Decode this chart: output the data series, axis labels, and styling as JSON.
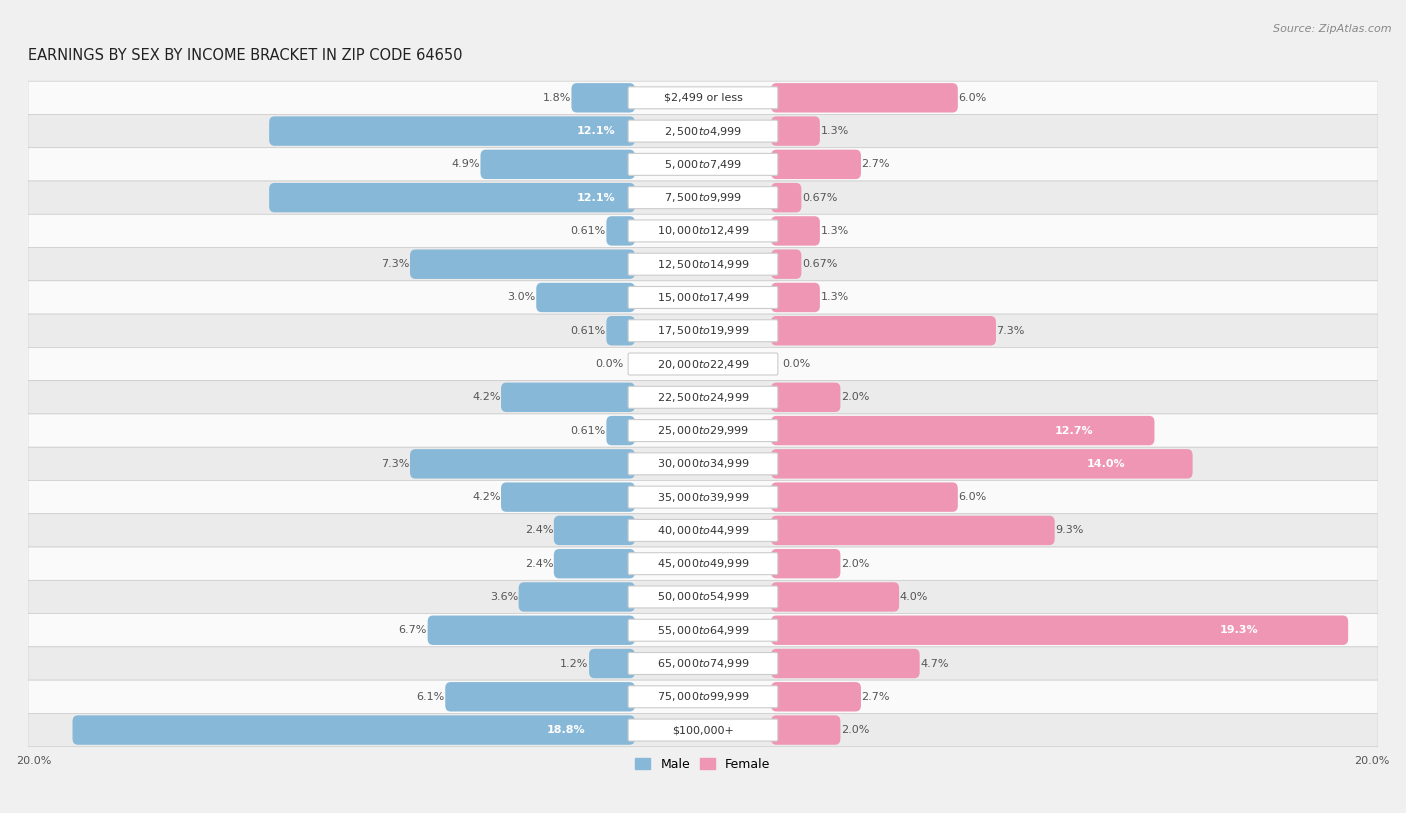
{
  "title": "EARNINGS BY SEX BY INCOME BRACKET IN ZIP CODE 64650",
  "source": "Source: ZipAtlas.com",
  "categories": [
    "$2,499 or less",
    "$2,500 to $4,999",
    "$5,000 to $7,499",
    "$7,500 to $9,999",
    "$10,000 to $12,499",
    "$12,500 to $14,999",
    "$15,000 to $17,499",
    "$17,500 to $19,999",
    "$20,000 to $22,499",
    "$22,500 to $24,999",
    "$25,000 to $29,999",
    "$30,000 to $34,999",
    "$35,000 to $39,999",
    "$40,000 to $44,999",
    "$45,000 to $49,999",
    "$50,000 to $54,999",
    "$55,000 to $64,999",
    "$65,000 to $74,999",
    "$75,000 to $99,999",
    "$100,000+"
  ],
  "male_values": [
    1.8,
    12.1,
    4.9,
    12.1,
    0.61,
    7.3,
    3.0,
    0.61,
    0.0,
    4.2,
    0.61,
    7.3,
    4.2,
    2.4,
    2.4,
    3.6,
    6.7,
    1.2,
    6.1,
    18.8
  ],
  "female_values": [
    6.0,
    1.3,
    2.7,
    0.67,
    1.3,
    0.67,
    1.3,
    7.3,
    0.0,
    2.0,
    12.7,
    14.0,
    6.0,
    9.3,
    2.0,
    4.0,
    19.3,
    4.7,
    2.7,
    2.0
  ],
  "male_color": "#88b8d8",
  "female_color": "#ee96b4",
  "axis_max": 20.0,
  "bg_color": "#f0f0f0",
  "row_light": "#fafafa",
  "row_dark": "#ebebeb",
  "label_fontsize": 8.0,
  "title_fontsize": 10.5,
  "source_fontsize": 8.0,
  "value_label_fontsize": 8.0
}
